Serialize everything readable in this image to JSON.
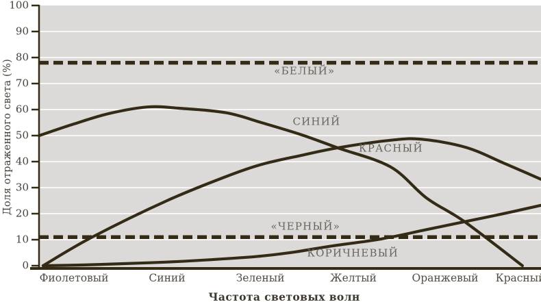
{
  "chart_data": {
    "type": "line",
    "title": "",
    "xlabel": "Частота световых волн",
    "ylabel": "Доля отраженного света (%)",
    "ylim": [
      0,
      100
    ],
    "yticks": [
      0,
      10,
      20,
      30,
      40,
      50,
      60,
      70,
      80,
      90,
      100
    ],
    "categories": [
      "Фиолетовый",
      "Синий",
      "Зеленый",
      "Желтый",
      "Оранжевый",
      "Красный"
    ],
    "grid": true,
    "legend": "labels-on-curves",
    "series": [
      {
        "name": "СИНИЙ",
        "style": "solid",
        "points": [
          [
            0,
            50
          ],
          [
            7,
            54.5
          ],
          [
            14,
            58.5
          ],
          [
            21.6,
            61
          ],
          [
            28,
            60.5
          ],
          [
            37.2,
            58.8
          ],
          [
            44.3,
            55
          ],
          [
            52,
            50.5
          ],
          [
            59.5,
            45.3
          ],
          [
            70,
            38
          ],
          [
            77.2,
            26
          ],
          [
            84.7,
            17
          ],
          [
            96.3,
            0
          ]
        ]
      },
      {
        "name": "КРАСНЫЙ",
        "style": "solid",
        "points": [
          [
            0.8,
            0
          ],
          [
            10.6,
            11
          ],
          [
            25.5,
            25
          ],
          [
            37.2,
            34.2
          ],
          [
            44.3,
            38.9
          ],
          [
            52,
            42.3
          ],
          [
            59.5,
            45.3
          ],
          [
            70,
            48.2
          ],
          [
            76.2,
            48.6
          ],
          [
            85,
            45.5
          ],
          [
            92.5,
            39.5
          ],
          [
            100,
            33.2
          ]
        ]
      },
      {
        "name": "КОРИЧНЕВЫЙ",
        "style": "solid",
        "points": [
          [
            0.8,
            0
          ],
          [
            9,
            0.3
          ],
          [
            16.8,
            0.8
          ],
          [
            25.5,
            1.4
          ],
          [
            34,
            2.3
          ],
          [
            43.7,
            3.6
          ],
          [
            51,
            5.3
          ],
          [
            57.7,
            7.4
          ],
          [
            68.2,
            10.3
          ],
          [
            77,
            13.8
          ],
          [
            84,
            16.6
          ],
          [
            92,
            19.8
          ],
          [
            100,
            23.2
          ]
        ]
      }
    ],
    "reference_lines": [
      {
        "name": "«БЕЛЫЙ»",
        "value": 78,
        "style": "dashed"
      },
      {
        "name": "«ЧЕРНЫЙ»",
        "value": 11,
        "style": "dashed"
      }
    ],
    "annotations": [
      {
        "text": "«БЕЛЫЙ»",
        "x": 52.9,
        "y": 74.7
      },
      {
        "text": "СИНИЙ",
        "x": 55.3,
        "y": 55.3
      },
      {
        "text": "КРАСНЫЙ",
        "x": 70.1,
        "y": 45.0
      },
      {
        "text": "«ЧЕРНЫЙ»",
        "x": 53.1,
        "y": 15.0
      },
      {
        "text": "КОРИЧНЕВЫЙ",
        "x": 62.5,
        "y": 4.7
      }
    ],
    "colors": {
      "ink": "#342b17",
      "plot_bg": "#dbdad8",
      "grid": "#f7f6f3",
      "label_text": "#69655c",
      "tick_text": "#45413a"
    }
  }
}
